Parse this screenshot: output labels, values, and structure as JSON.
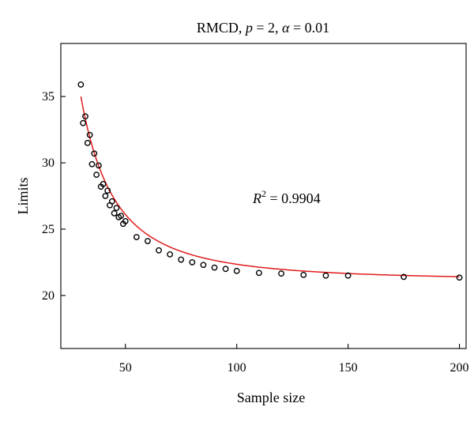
{
  "chart_data": {
    "type": "scatter",
    "title": {
      "prefix": "RMCD, ",
      "p_symbol": "p",
      "p_value": " = 2, ",
      "alpha_symbol": "α",
      "alpha_value": " = 0.01"
    },
    "xlabel": "Sample size",
    "ylabel": "Limits",
    "xlim": [
      21,
      203
    ],
    "ylim": [
      16,
      39
    ],
    "x_ticks": [
      50,
      100,
      150,
      200
    ],
    "y_ticks": [
      20,
      25,
      30,
      35
    ],
    "grid": false,
    "annotation": {
      "symbol": "R",
      "superscript": "2",
      "text": " = 0.9904"
    },
    "series": [
      {
        "kind": "points",
        "marker": "open-circle",
        "color": "#000000",
        "x": [
          30,
          31,
          32,
          33,
          34,
          35,
          36,
          37,
          38,
          39,
          40,
          41,
          42,
          43,
          44,
          45,
          46,
          47,
          48,
          49,
          50,
          55,
          60,
          65,
          70,
          75,
          80,
          85,
          90,
          95,
          100,
          110,
          120,
          130,
          140,
          150,
          175,
          200
        ],
        "y": [
          35.9,
          33.0,
          33.5,
          31.5,
          32.1,
          29.9,
          30.7,
          29.1,
          29.8,
          28.2,
          28.4,
          27.5,
          27.9,
          26.8,
          27.1,
          26.2,
          26.6,
          25.9,
          26.0,
          25.4,
          25.6,
          24.4,
          24.1,
          23.4,
          23.1,
          22.7,
          22.5,
          22.3,
          22.1,
          22.0,
          21.85,
          21.7,
          21.65,
          21.55,
          21.5,
          21.5,
          21.4,
          21.35
        ]
      },
      {
        "kind": "fit-curve",
        "color": "#e01b1b",
        "x_range": [
          30,
          200
        ]
      }
    ]
  }
}
